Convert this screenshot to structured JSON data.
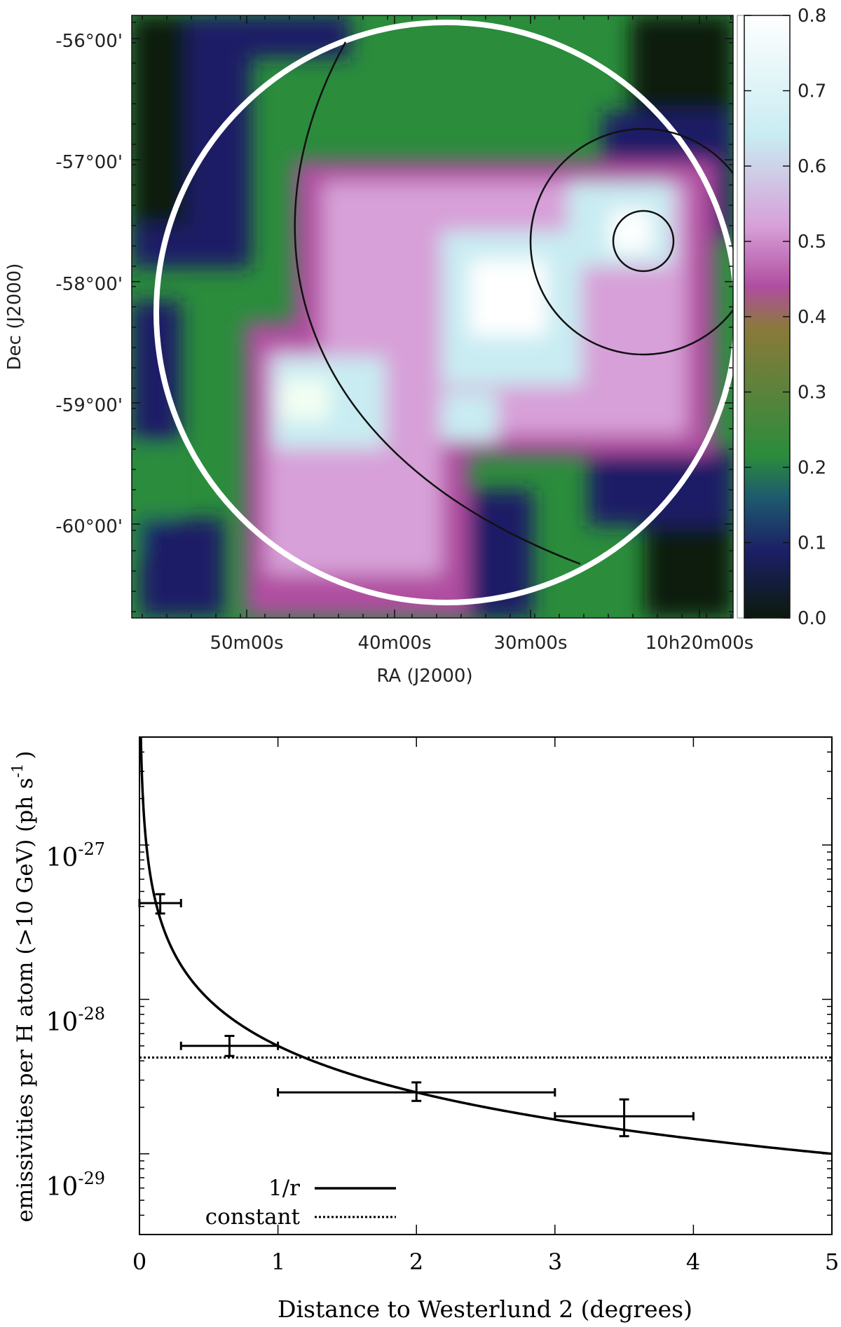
{
  "chart_data": [
    {
      "type": "heatmap",
      "xlabel": "RA (J2000)",
      "ylabel": "Dec (J2000)",
      "x_tick_labels": [
        "50m00s",
        "40m00s",
        "30m00s",
        "10h20m00s"
      ],
      "y_tick_labels": [
        "-56°00'",
        "-57°00'",
        "-58°00'",
        "-59°00'",
        "-60°00'"
      ],
      "colorbar": {
        "min": 0.0,
        "max": 0.8,
        "ticks": [
          0.0,
          0.1,
          0.2,
          0.3,
          0.4,
          0.5,
          0.6,
          0.7,
          0.8
        ],
        "tick_labels": [
          "0.0",
          "0.1",
          "0.2",
          "0.3",
          "0.4",
          "0.5",
          "0.6",
          "0.7",
          "0.8"
        ],
        "colors": [
          "#0b1a0b",
          "#1c1f66",
          "#2b8c3c",
          "#b04ea0",
          "#c9a6d6",
          "#c8ecf2",
          "#ffffff"
        ]
      },
      "overlays": [
        "white-region-circle",
        "large-black-arc",
        "medium-black-circle",
        "small-black-circle"
      ]
    },
    {
      "type": "scatter",
      "xlabel": "Distance to Westerlund 2 (degrees)",
      "ylabel": "emissivities per H atom (>10 GeV) (ph s-1)",
      "ylabel_parts": {
        "main": "emissivities per H atom (>10 GeV) (ph s",
        "sup": "-1",
        "close": ")"
      },
      "xlim": [
        0,
        5
      ],
      "ylim": [
        3e-30,
        5e-27
      ],
      "yscale": "log",
      "x_ticks": [
        0,
        1,
        2,
        3,
        4,
        5
      ],
      "x_tick_labels": [
        "0",
        "1",
        "2",
        "3",
        "4",
        "5"
      ],
      "y_ticks": [
        1e-27,
        1e-28,
        1e-29
      ],
      "y_tick_labels": [
        {
          "base": "10",
          "exp": "-27"
        },
        {
          "base": "10",
          "exp": "-28"
        },
        {
          "base": "10",
          "exp": "-29"
        }
      ],
      "points": [
        {
          "x": 0.15,
          "xerr": [
            0.0,
            0.3
          ],
          "y": 4.2e-28,
          "yerr": [
            3.6e-28,
            4.8e-28
          ]
        },
        {
          "x": 0.65,
          "xerr": [
            0.3,
            1.0
          ],
          "y": 5e-29,
          "yerr": [
            4.3e-29,
            5.8e-29
          ]
        },
        {
          "x": 2.0,
          "xerr": [
            1.0,
            3.0
          ],
          "y": 2.5e-29,
          "yerr": [
            2.2e-29,
            2.9e-29
          ]
        },
        {
          "x": 3.5,
          "xerr": [
            3.0,
            4.0
          ],
          "y": 1.75e-29,
          "yerr": [
            1.3e-29,
            2.25e-29
          ]
        }
      ],
      "series": [
        {
          "name": "1/r",
          "style": "solid",
          "model": "A/r",
          "A": 5e-29
        },
        {
          "name": "constant",
          "style": "dotted",
          "value": 4.2e-29
        }
      ],
      "legend_position": "bottom-left"
    }
  ]
}
